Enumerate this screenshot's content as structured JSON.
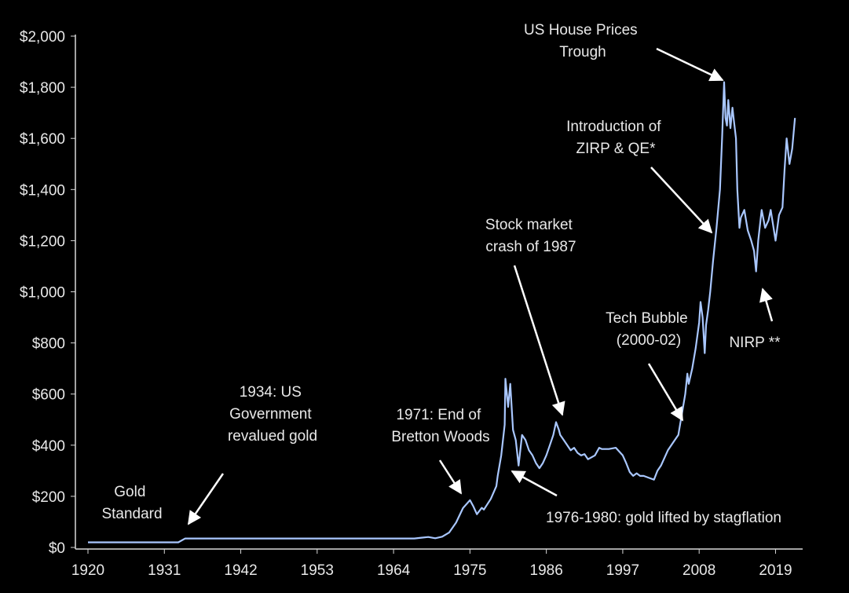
{
  "chart_data": {
    "type": "line",
    "title": "",
    "xlabel": "",
    "ylabel": "",
    "xlim": [
      1920,
      2022
    ],
    "ylim": [
      0,
      2000
    ],
    "grid": false,
    "legend": "none",
    "colors": {
      "background": "#000000",
      "line": "#a9c7ff",
      "axis": "#d9d9d9",
      "text": "#e8e8e8",
      "arrow": "#ffffff"
    },
    "y_ticks": [
      {
        "value": 0,
        "label": "$0"
      },
      {
        "value": 200,
        "label": "$200"
      },
      {
        "value": 400,
        "label": "$400"
      },
      {
        "value": 600,
        "label": "$600"
      },
      {
        "value": 800,
        "label": "$800"
      },
      {
        "value": 1000,
        "label": "$1,000"
      },
      {
        "value": 1200,
        "label": "$1,200"
      },
      {
        "value": 1400,
        "label": "$1,400"
      },
      {
        "value": 1600,
        "label": "$1,600"
      },
      {
        "value": 1800,
        "label": "$1,800"
      },
      {
        "value": 2000,
        "label": "$2,000"
      }
    ],
    "x_ticks": [
      {
        "value": 1920,
        "label": "1920"
      },
      {
        "value": 1931,
        "label": "1931"
      },
      {
        "value": 1942,
        "label": "1942"
      },
      {
        "value": 1953,
        "label": "1953"
      },
      {
        "value": 1964,
        "label": "1964"
      },
      {
        "value": 1975,
        "label": "1975"
      },
      {
        "value": 1986,
        "label": "1986"
      },
      {
        "value": 1997,
        "label": "1997"
      },
      {
        "value": 2008,
        "label": "2008"
      },
      {
        "value": 2019,
        "label": "2019"
      }
    ],
    "series": [
      {
        "x": [
          1920,
          1925,
          1930,
          1933,
          1934,
          1935,
          1940,
          1950,
          1960,
          1967,
          1968,
          1969,
          1970,
          1971,
          1972,
          1973,
          1974,
          1975,
          1975.5,
          1976,
          1976.7,
          1977,
          1978,
          1978.8,
          1979,
          1979.5,
          1980,
          1980.1,
          1980.5,
          1980.8,
          1981.2,
          1981.6,
          1982,
          1982.5,
          1983,
          1983.5,
          1984,
          1984.5,
          1985,
          1985.5,
          1986,
          1986.5,
          1987,
          1987.4,
          1987.8,
          1988,
          1988.5,
          1989,
          1989.5,
          1990,
          1990.5,
          1991,
          1991.5,
          1992,
          1993,
          1993.6,
          1994,
          1995,
          1996,
          1997,
          1997.5,
          1998,
          1998.5,
          1999,
          1999.5,
          2000,
          2001,
          2001.5,
          2002,
          2002.5,
          2003,
          2003.5,
          2004,
          2004.5,
          2005,
          2005.5,
          2006,
          2006.3,
          2006.5,
          2007,
          2007.5,
          2008,
          2008.2,
          2008.5,
          2008.8,
          2009,
          2009.3,
          2009.6,
          2010,
          2010.5,
          2011,
          2011.3,
          2011.6,
          2011.8,
          2012,
          2012.2,
          2012.5,
          2012.8,
          2013,
          2013.3,
          2013.5,
          2013.8,
          2014,
          2014.5,
          2015,
          2015.5,
          2015.9,
          2016.2,
          2016.5,
          2017,
          2017.5,
          2018,
          2018.3,
          2018.6,
          2019,
          2019.5,
          2020,
          2020.3,
          2020.6,
          2021,
          2021.4,
          2021.8
        ],
        "y": [
          20,
          20,
          20,
          20,
          35,
          35,
          35,
          35,
          35,
          35,
          38,
          41,
          36,
          42,
          58,
          97,
          154,
          185,
          160,
          130,
          155,
          148,
          190,
          240,
          280,
          360,
          480,
          660,
          550,
          640,
          460,
          420,
          320,
          440,
          420,
          380,
          360,
          330,
          310,
          330,
          360,
          400,
          440,
          490,
          460,
          440,
          420,
          400,
          380,
          390,
          370,
          360,
          365,
          345,
          360,
          390,
          385,
          385,
          390,
          360,
          330,
          295,
          280,
          290,
          280,
          280,
          270,
          265,
          300,
          320,
          350,
          380,
          400,
          420,
          440,
          520,
          600,
          680,
          640,
          700,
          780,
          880,
          960,
          900,
          760,
          870,
          930,
          1000,
          1120,
          1250,
          1400,
          1600,
          1820,
          1680,
          1650,
          1750,
          1640,
          1720,
          1670,
          1600,
          1400,
          1250,
          1290,
          1320,
          1240,
          1200,
          1160,
          1080,
          1200,
          1320,
          1250,
          1280,
          1320,
          1270,
          1200,
          1300,
          1330,
          1480,
          1600,
          1500,
          1560,
          1680
        ]
      }
    ],
    "annotations": [
      {
        "lines": [
          "Gold",
          "Standard"
        ]
      },
      {
        "lines": [
          "1934: US",
          "Government",
          "revalued gold"
        ]
      },
      {
        "lines": [
          "1971: End of",
          "Bretton Woods"
        ]
      },
      {
        "lines": [
          "1976-1980: gold lifted by stagflation"
        ]
      },
      {
        "lines": [
          "Stock market",
          "crash of 1987"
        ]
      },
      {
        "lines": [
          "Tech Bubble",
          "(2000-02)"
        ]
      },
      {
        "lines": [
          "Introduction of",
          "ZIRP & QE*"
        ]
      },
      {
        "lines": [
          "US House Prices",
          "Trough"
        ]
      },
      {
        "lines": [
          "NIRP **"
        ]
      }
    ]
  }
}
